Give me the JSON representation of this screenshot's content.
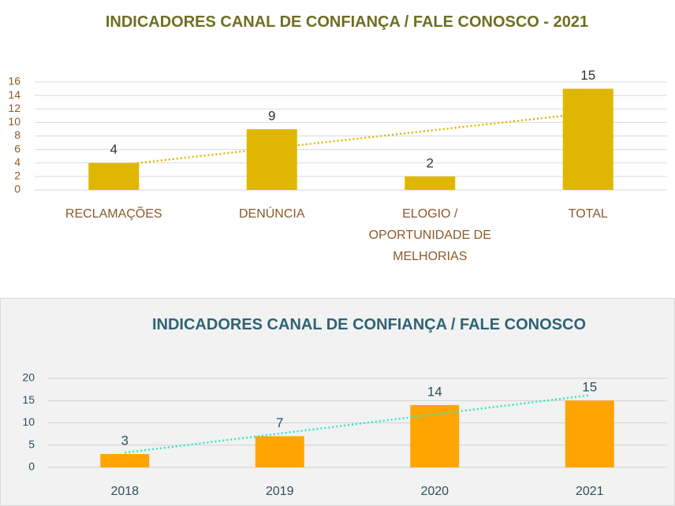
{
  "chart_data": [
    {
      "type": "bar",
      "title": "INDICADORES CANAL  DE CONFIANÇA / FALE CONOSCO - 2021",
      "categories": [
        "RECLAMAÇÕES",
        "DENÚNCIA",
        "ELOGIO / OPORTUNIDADE DE MELHORIAS",
        "TOTAL"
      ],
      "values": [
        4,
        9,
        2,
        15
      ],
      "color": "#dfb700",
      "ylim": [
        0,
        16
      ],
      "yticks": [
        0,
        2,
        4,
        6,
        8,
        10,
        12,
        14,
        16
      ],
      "grid": true,
      "trendline": {
        "color": "#dfb700",
        "style": "dotted"
      }
    },
    {
      "type": "bar",
      "title": "INDICADORES CANAL DE CONFIANÇA / FALE CONOSCO",
      "categories": [
        "2018",
        "2019",
        "2020",
        "2021"
      ],
      "values": [
        3,
        7,
        14,
        15
      ],
      "color": "#ffa500",
      "ylim": [
        0,
        20
      ],
      "yticks": [
        0,
        5,
        10,
        15,
        20
      ],
      "grid": true,
      "trendline": {
        "color": "#2ee8c4",
        "style": "dotted"
      }
    }
  ]
}
